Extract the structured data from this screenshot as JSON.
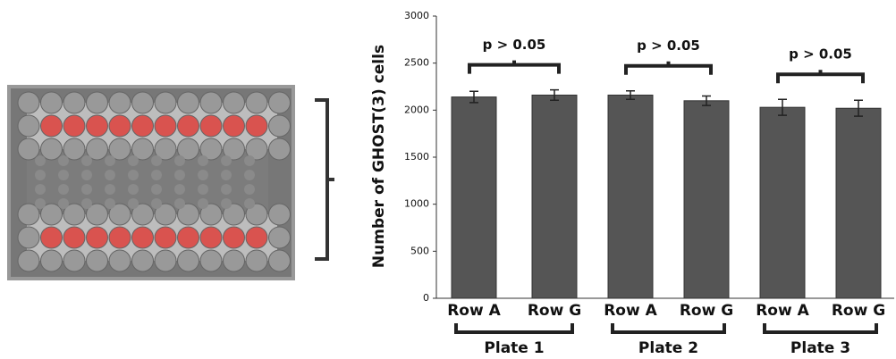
{
  "chart_data": {
    "type": "bar",
    "ylabel": "Number of GHOST(3) cells",
    "categories": [
      "Row A",
      "Row G",
      "Row A",
      "Row G",
      "Row A",
      "Row G"
    ],
    "groups": [
      "Plate 1",
      "Plate 2",
      "Plate 3"
    ],
    "values": [
      2140,
      2160,
      2160,
      2100,
      2030,
      2020
    ],
    "errors": [
      60,
      55,
      45,
      50,
      85,
      85
    ],
    "annotations": [
      "p > 0.05",
      "p > 0.05",
      "p > 0.05"
    ],
    "color": "#555555",
    "ylim": [
      0,
      3000
    ],
    "yticks": [
      0,
      500,
      1000,
      1500,
      2000,
      2500,
      3000
    ]
  }
}
